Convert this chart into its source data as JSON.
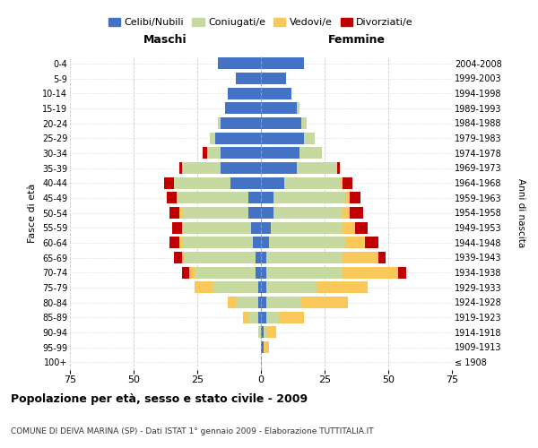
{
  "age_groups": [
    "100+",
    "95-99",
    "90-94",
    "85-89",
    "80-84",
    "75-79",
    "70-74",
    "65-69",
    "60-64",
    "55-59",
    "50-54",
    "45-49",
    "40-44",
    "35-39",
    "30-34",
    "25-29",
    "20-24",
    "15-19",
    "10-14",
    "5-9",
    "0-4"
  ],
  "birth_years": [
    "≤ 1908",
    "1909-1913",
    "1914-1918",
    "1919-1923",
    "1924-1928",
    "1929-1933",
    "1934-1938",
    "1939-1943",
    "1944-1948",
    "1949-1953",
    "1954-1958",
    "1959-1963",
    "1964-1968",
    "1969-1973",
    "1974-1978",
    "1979-1983",
    "1984-1988",
    "1989-1993",
    "1994-1998",
    "1999-2003",
    "2004-2008"
  ],
  "colors": {
    "celibi": "#4472C4",
    "coniugati": "#C5D9A0",
    "vedovi": "#FAC858",
    "divorziati": "#C00000"
  },
  "maschi": {
    "celibi": [
      0,
      0,
      0,
      1,
      1,
      1,
      2,
      2,
      3,
      4,
      5,
      5,
      12,
      16,
      16,
      18,
      16,
      14,
      13,
      10,
      17
    ],
    "coniugati": [
      0,
      0,
      1,
      4,
      9,
      18,
      24,
      28,
      28,
      27,
      26,
      28,
      22,
      15,
      5,
      2,
      1,
      0,
      0,
      0,
      0
    ],
    "vedovi": [
      0,
      0,
      0,
      2,
      3,
      7,
      2,
      1,
      1,
      0,
      1,
      0,
      0,
      0,
      0,
      0,
      0,
      0,
      0,
      0,
      0
    ],
    "divorziati": [
      0,
      0,
      0,
      0,
      0,
      0,
      3,
      3,
      4,
      4,
      4,
      4,
      4,
      1,
      2,
      0,
      0,
      0,
      0,
      0,
      0
    ]
  },
  "femmine": {
    "nubili": [
      0,
      1,
      1,
      2,
      2,
      2,
      2,
      2,
      3,
      4,
      5,
      5,
      9,
      14,
      15,
      17,
      16,
      14,
      12,
      10,
      17
    ],
    "coniugati": [
      0,
      0,
      1,
      5,
      14,
      20,
      30,
      30,
      30,
      28,
      27,
      28,
      22,
      16,
      9,
      4,
      2,
      1,
      0,
      0,
      0
    ],
    "vedovi": [
      0,
      2,
      4,
      10,
      18,
      20,
      22,
      14,
      8,
      5,
      3,
      2,
      1,
      0,
      0,
      0,
      0,
      0,
      0,
      0,
      0
    ],
    "divorziati": [
      0,
      0,
      0,
      0,
      0,
      0,
      3,
      3,
      5,
      5,
      5,
      4,
      4,
      1,
      0,
      0,
      0,
      0,
      0,
      0,
      0
    ]
  },
  "xlim": 75,
  "title_main": "Popolazione per età, sesso e stato civile - 2009",
  "title_sub": "COMUNE DI DEIVA MARINA (SP) - Dati ISTAT 1° gennaio 2009 - Elaborazione TUTTITALIA.IT",
  "ylabel": "Fasce di età",
  "ylabel_right": "Anni di nascita",
  "label_maschi": "Maschi",
  "label_femmine": "Femmine",
  "legend_labels": [
    "Celibi/Nubili",
    "Coniugati/e",
    "Vedovi/e",
    "Divorziati/e"
  ],
  "bg_color": "#FFFFFF",
  "grid_color": "#CCCCCC",
  "bar_height": 0.78
}
